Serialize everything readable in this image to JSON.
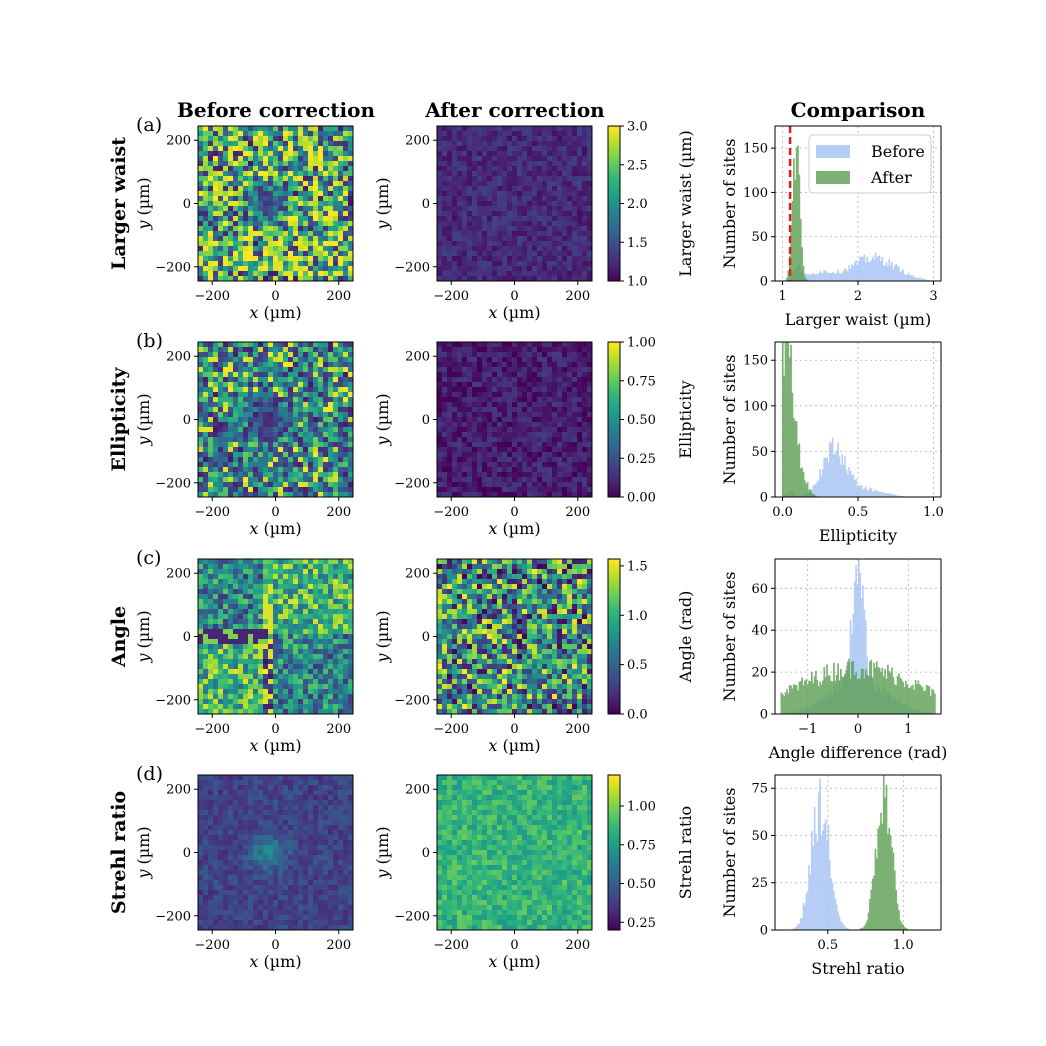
{
  "column_titles": [
    "Before correction",
    "After correction",
    "Comparison"
  ],
  "legend": {
    "before": "Before",
    "after": "After"
  },
  "colors": {
    "before_hist": "#a4c2f4",
    "after_hist": "#5c9e52",
    "threshold_line": "#e41a1c",
    "grid": "#b0b0b0",
    "viridis": [
      "#440154",
      "#482878",
      "#3e4989",
      "#31688e",
      "#26828e",
      "#1f9e89",
      "#35b779",
      "#6ece58",
      "#b5de2b",
      "#fde725"
    ]
  },
  "map_axes": {
    "x_label": "x (µm)",
    "x_var": "x",
    "x_unit": " (µm)",
    "y_label": "y (µm)",
    "y_var": "y",
    "y_unit": " (µm)",
    "ticks": [
      "−200",
      "0",
      "200"
    ],
    "tick_values": [
      -200,
      0,
      200
    ],
    "range": [
      -245,
      245
    ]
  },
  "hist_ylabel": "Number of sites",
  "rows": [
    {
      "panel": "(a)",
      "row_label": "Larger waist",
      "colorbar": {
        "label": "Larger waist (µm)",
        "min": 1.0,
        "max": 3.0,
        "ticks": [
          "1.0",
          "1.5",
          "2.0",
          "2.5",
          "3.0"
        ],
        "tick_values": [
          1.0,
          1.5,
          2.0,
          2.5,
          3.0
        ]
      },
      "before_map": {
        "pattern": "ring_low",
        "center_level": 0.15,
        "edge_level": 0.55,
        "noise": 0.5
      },
      "after_map": {
        "pattern": "uniform",
        "level": 0.12,
        "noise": 0.08
      },
      "chart_data": {
        "type": "bar",
        "xlabel": "Larger waist (µm)",
        "ylabel": "Number of sites",
        "xlim": [
          0.9,
          3.1
        ],
        "ylim": [
          0,
          175
        ],
        "x_ticks": [
          "1",
          "2",
          "3"
        ],
        "x_tick_values": [
          1,
          2,
          3
        ],
        "y_ticks": [
          "0",
          "50",
          "100",
          "150"
        ],
        "y_tick_values": [
          0,
          50,
          100,
          150
        ],
        "threshold_x": 1.1,
        "series": [
          {
            "name": "Before",
            "peaks": [
              {
                "mu": 1.2,
                "sigma": 0.06,
                "amp": 15
              },
              {
                "mu": 1.5,
                "sigma": 0.15,
                "amp": 9
              },
              {
                "mu": 2.2,
                "sigma": 0.3,
                "amp": 26
              }
            ],
            "range": [
              1.05,
              3.0
            ]
          },
          {
            "name": "After",
            "peaks": [
              {
                "mu": 1.18,
                "sigma": 0.045,
                "amp": 158
              }
            ],
            "range": [
              1.0,
              1.45
            ]
          }
        ]
      }
    },
    {
      "panel": "(b)",
      "row_label": "Ellipticity",
      "colorbar": {
        "label": "Ellipticity",
        "min": 0.0,
        "max": 1.0,
        "ticks": [
          "0.00",
          "0.25",
          "0.50",
          "0.75",
          "1.00"
        ],
        "tick_values": [
          0.0,
          0.25,
          0.5,
          0.75,
          1.0
        ]
      },
      "before_map": {
        "pattern": "ring_low",
        "center_level": 0.08,
        "edge_level": 0.4,
        "noise": 0.35
      },
      "after_map": {
        "pattern": "uniform",
        "level": 0.08,
        "noise": 0.1
      },
      "chart_data": {
        "type": "bar",
        "xlabel": "Ellipticity",
        "ylabel": "Number of sites",
        "xlim": [
          -0.05,
          1.05
        ],
        "ylim": [
          0,
          170
        ],
        "x_ticks": [
          "0.0",
          "0.5",
          "1.0"
        ],
        "x_tick_values": [
          0.0,
          0.5,
          1.0
        ],
        "y_ticks": [
          "0",
          "50",
          "100",
          "150"
        ],
        "y_tick_values": [
          0,
          50,
          100,
          150
        ],
        "series": [
          {
            "name": "Before",
            "peaks": [
              {
                "mu": 0.34,
                "sigma": 0.08,
                "amp": 52
              },
              {
                "mu": 0.55,
                "sigma": 0.12,
                "amp": 8
              },
              {
                "mu": 0.05,
                "sigma": 0.03,
                "amp": 6
              }
            ],
            "range": [
              0.0,
              1.0
            ]
          },
          {
            "name": "After",
            "peaks": [
              {
                "mu": 0.02,
                "sigma": 0.04,
                "amp": 160
              },
              {
                "mu": 0.09,
                "sigma": 0.05,
                "amp": 40
              }
            ],
            "range": [
              0.0,
              0.3
            ]
          }
        ]
      }
    },
    {
      "panel": "(c)",
      "row_label": "Angle",
      "colorbar": {
        "label": "Angle (rad)",
        "min": 0.0,
        "max": 1.57,
        "ticks": [
          "0.0",
          "0.5",
          "1.0",
          "1.5"
        ],
        "tick_values": [
          0.0,
          0.5,
          1.0,
          1.5
        ]
      },
      "before_map": {
        "pattern": "quadrant",
        "noise": 0.3
      },
      "after_map": {
        "pattern": "random",
        "noise": 1.0
      },
      "chart_data": {
        "type": "bar",
        "xlabel": "Angle difference (rad)",
        "ylabel": "Number of sites",
        "xlim": [
          -1.65,
          1.65
        ],
        "ylim": [
          0,
          74
        ],
        "x_ticks": [
          "−1",
          "0",
          "1"
        ],
        "x_tick_values": [
          -1,
          0,
          1
        ],
        "y_ticks": [
          "0",
          "20",
          "40",
          "60"
        ],
        "y_tick_values": [
          0,
          20,
          40,
          60
        ],
        "series": [
          {
            "name": "Before",
            "peaks": [
              {
                "mu": 0.0,
                "sigma": 0.1,
                "amp": 63
              },
              {
                "mu": 0.0,
                "sigma": 0.55,
                "amp": 17
              }
            ],
            "range": [
              -1.55,
              1.55
            ]
          },
          {
            "name": "After",
            "peaks": [
              {
                "mu": 0.0,
                "sigma": 1.2,
                "amp": 22
              }
            ],
            "range": [
              -1.55,
              1.55
            ]
          }
        ]
      }
    },
    {
      "panel": "(d)",
      "row_label": "Strehl ratio",
      "colorbar": {
        "label": "Strehl ratio",
        "min": 0.2,
        "max": 1.2,
        "ticks": [
          "0.25",
          "0.50",
          "0.75",
          "1.00"
        ],
        "tick_values": [
          0.25,
          0.5,
          0.75,
          1.0
        ]
      },
      "before_map": {
        "pattern": "center_high",
        "center_level": 0.45,
        "edge_level": 0.2,
        "noise": 0.08
      },
      "after_map": {
        "pattern": "uniform",
        "level": 0.65,
        "noise": 0.12
      },
      "chart_data": {
        "type": "bar",
        "xlabel": "Strehl ratio",
        "ylabel": "Number of sites",
        "xlim": [
          0.15,
          1.25
        ],
        "ylim": [
          0,
          82
        ],
        "x_ticks": [
          "0.5",
          "1.0"
        ],
        "x_tick_values": [
          0.5,
          1.0
        ],
        "y_ticks": [
          "0",
          "25",
          "50",
          "75"
        ],
        "y_tick_values": [
          0,
          25,
          50,
          75
        ],
        "series": [
          {
            "name": "Before",
            "peaks": [
              {
                "mu": 0.45,
                "sigma": 0.06,
                "amp": 66
              }
            ],
            "range": [
              0.2,
              0.75
            ]
          },
          {
            "name": "After",
            "peaks": [
              {
                "mu": 0.87,
                "sigma": 0.05,
                "amp": 74
              }
            ],
            "range": [
              0.6,
              1.15
            ]
          }
        ]
      }
    }
  ]
}
